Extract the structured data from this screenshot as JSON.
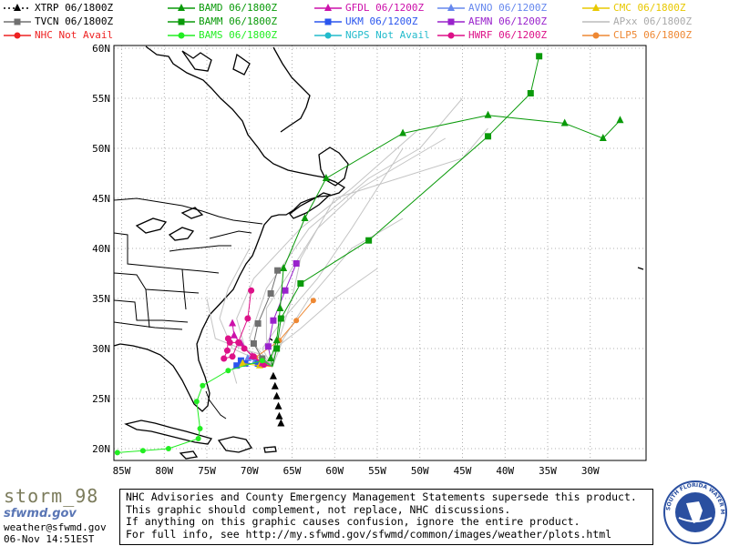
{
  "legend": [
    {
      "id": "xtrp",
      "label": "XTRP  06/1800Z",
      "color": "#000000",
      "marker": "triangle",
      "dashed": true
    },
    {
      "id": "bamd",
      "label": "BAMD 06/1800Z",
      "color": "#0a9a0a",
      "marker": "triangle"
    },
    {
      "id": "gfdl",
      "label": "GFDL  06/1200Z",
      "color": "#cc11aa",
      "marker": "triangle"
    },
    {
      "id": "avno",
      "label": "AVNO 06/1200Z",
      "color": "#6688ee",
      "marker": "triangle"
    },
    {
      "id": "cmc",
      "label": "CMC 06/1800Z",
      "color": "#e8c800",
      "marker": "triangle"
    },
    {
      "id": "tvcn",
      "label": "TVCN  06/1800Z",
      "color": "#707070",
      "marker": "square"
    },
    {
      "id": "bamm",
      "label": "BAMM 06/1800Z",
      "color": "#0a9a0a",
      "marker": "square"
    },
    {
      "id": "ukm",
      "label": "UKM   06/1200Z",
      "color": "#2a55ee",
      "marker": "square"
    },
    {
      "id": "aemn",
      "label": "AEMN 06/1200Z",
      "color": "#9922cc",
      "marker": "square"
    },
    {
      "id": "apxx",
      "label": "APxx 06/1800Z",
      "color": "#bbbbbb",
      "marker": "line"
    },
    {
      "id": "nhc",
      "label": "NHC   Not Avail",
      "color": "#ee2222",
      "marker": "circle"
    },
    {
      "id": "bams",
      "label": "BAMS 06/1800Z",
      "color": "#22ee22",
      "marker": "circle"
    },
    {
      "id": "ngps",
      "label": "NGPS Not Avail",
      "color": "#22bbcc",
      "marker": "circle"
    },
    {
      "id": "hwrf",
      "label": "HWRF 06/1200Z",
      "color": "#dd1188",
      "marker": "circle"
    },
    {
      "id": "clp5",
      "label": "CLP5 06/1800Z",
      "color": "#ee8833",
      "marker": "circle"
    }
  ],
  "axes": {
    "lon_ticks": [
      "85W",
      "80W",
      "75W",
      "70W",
      "65W",
      "60W",
      "55W",
      "50W",
      "45W",
      "40W",
      "35W",
      "30W"
    ],
    "lat_ticks": [
      "60N",
      "55N",
      "50N",
      "45N",
      "40N",
      "35N",
      "30N",
      "25N",
      "20N"
    ]
  },
  "tracks": {
    "xtrp": [
      [
        -67.3,
        28.2
      ],
      [
        -67.2,
        27.2
      ],
      [
        -67.0,
        26.2
      ],
      [
        -66.8,
        25.2
      ],
      [
        -66.6,
        24.2
      ],
      [
        -66.5,
        23.2
      ],
      [
        -66.3,
        22.5
      ]
    ],
    "bamd": [
      [
        -67.3,
        28.2
      ],
      [
        -67.5,
        29.0
      ],
      [
        -66.8,
        30.8
      ],
      [
        -66.4,
        34.0
      ],
      [
        -66.0,
        38.0
      ],
      [
        -63.5,
        43.0
      ],
      [
        -61.0,
        47.0
      ],
      [
        -52.0,
        51.5
      ],
      [
        -42.0,
        53.3
      ],
      [
        -33.0,
        52.5
      ],
      [
        -28.5,
        51.0
      ],
      [
        -26.5,
        52.8
      ]
    ],
    "bamm": [
      [
        -67.3,
        28.2
      ],
      [
        -66.8,
        30.0
      ],
      [
        -66.3,
        33.0
      ],
      [
        -64.0,
        36.5
      ],
      [
        -56.0,
        40.8
      ],
      [
        -42.0,
        51.2
      ],
      [
        -37.0,
        55.5
      ],
      [
        -36.0,
        59.2
      ]
    ],
    "bams": [
      [
        -67.3,
        28.2
      ],
      [
        -68.5,
        28.8
      ],
      [
        -72.5,
        27.8
      ],
      [
        -75.5,
        26.3
      ],
      [
        -76.2,
        24.7
      ],
      [
        -75.8,
        22.0
      ],
      [
        -76.0,
        21.0
      ],
      [
        -79.5,
        20.0
      ],
      [
        -82.5,
        19.8
      ],
      [
        -85.5,
        19.6
      ]
    ],
    "tvcn": [
      [
        -67.3,
        28.2
      ],
      [
        -68.5,
        29.0
      ],
      [
        -69.5,
        30.5
      ],
      [
        -69.0,
        32.5
      ],
      [
        -67.5,
        35.5
      ],
      [
        -66.7,
        37.8
      ]
    ],
    "gfdl": [
      [
        -67.3,
        28.2
      ],
      [
        -68.5,
        28.5
      ],
      [
        -69.7,
        29.2
      ],
      [
        -71.0,
        30.5
      ],
      [
        -71.8,
        31.3
      ],
      [
        -72.0,
        32.5
      ]
    ],
    "hwrf": [
      [
        -67.3,
        28.2
      ],
      [
        -68.3,
        28.4
      ],
      [
        -69.5,
        29.2
      ],
      [
        -70.6,
        30.0
      ],
      [
        -71.3,
        30.6
      ],
      [
        -72.3,
        30.6
      ],
      [
        -72.5,
        31.0
      ],
      [
        -72.6,
        29.8
      ],
      [
        -73.0,
        29.0
      ],
      [
        -72.0,
        29.2
      ],
      [
        -70.2,
        33.0
      ],
      [
        -69.8,
        35.8
      ]
    ],
    "aemn": [
      [
        -67.3,
        28.2
      ],
      [
        -67.8,
        30.2
      ],
      [
        -67.2,
        32.8
      ],
      [
        -65.8,
        35.8
      ],
      [
        -64.5,
        38.5
      ]
    ],
    "ukm": [
      [
        -67.3,
        28.2
      ],
      [
        -69.0,
        28.5
      ],
      [
        -70.5,
        28.5
      ],
      [
        -71.0,
        28.8
      ],
      [
        -71.5,
        28.3
      ]
    ],
    "avno": [
      [
        -67.3,
        28.2
      ],
      [
        -69.3,
        28.8
      ],
      [
        -70.2,
        29.0
      ],
      [
        -70.8,
        28.6
      ]
    ],
    "clp5": [
      [
        -67.3,
        28.2
      ],
      [
        -68.5,
        28.6
      ],
      [
        -69.3,
        29.1
      ],
      [
        -66.5,
        30.8
      ],
      [
        -64.5,
        32.8
      ],
      [
        -62.5,
        34.8
      ]
    ],
    "cmc": [
      [
        -67.3,
        28.2
      ],
      [
        -68.8,
        28.3
      ],
      [
        -70.8,
        28.5
      ]
    ],
    "apxx": [
      [
        [
          -67.3,
          28.2
        ],
        [
          -68.5,
          30
        ],
        [
          -66,
          33
        ],
        [
          -62,
          37
        ],
        [
          -58,
          42
        ],
        [
          -55,
          46
        ],
        [
          -52,
          50
        ]
      ],
      [
        [
          -67.3,
          28.2
        ],
        [
          -70,
          31
        ],
        [
          -68,
          36
        ],
        [
          -63,
          42
        ],
        [
          -56,
          47
        ],
        [
          -50,
          50
        ],
        [
          -45,
          55
        ]
      ],
      [
        [
          -67.3,
          28.2
        ],
        [
          -70.5,
          30
        ],
        [
          -71.5,
          33
        ],
        [
          -69.5,
          37
        ],
        [
          -64,
          42
        ],
        [
          -58,
          46
        ],
        [
          -50,
          52
        ]
      ],
      [
        [
          -67.3,
          28.2
        ],
        [
          -72,
          30
        ],
        [
          -73.5,
          33
        ],
        [
          -72.5,
          36
        ],
        [
          -70,
          40
        ]
      ],
      [
        [
          -67.3,
          28.2
        ],
        [
          -66,
          31
        ],
        [
          -63,
          35
        ],
        [
          -58,
          40
        ],
        [
          -52,
          43
        ]
      ],
      [
        [
          -67.3,
          28.2
        ],
        [
          -69,
          29.5
        ],
        [
          -71,
          30
        ],
        [
          -74,
          31
        ],
        [
          -75,
          35
        ]
      ],
      [
        [
          -67.3,
          28.2
        ],
        [
          -68,
          31
        ],
        [
          -68,
          34
        ],
        [
          -65,
          38
        ],
        [
          -62,
          42
        ],
        [
          -57,
          46
        ],
        [
          -47,
          51
        ]
      ],
      [
        [
          -67.3,
          28.2
        ],
        [
          -67,
          30
        ],
        [
          -64,
          32
        ],
        [
          -60,
          35
        ],
        [
          -55,
          38
        ]
      ],
      [
        [
          -67.3,
          28.2
        ],
        [
          -70,
          29
        ],
        [
          -72,
          28
        ],
        [
          -71.5,
          26.5
        ]
      ],
      [
        [
          -67.3,
          28.2
        ],
        [
          -66.5,
          31
        ],
        [
          -65,
          35
        ],
        [
          -64,
          39
        ],
        [
          -60,
          45
        ],
        [
          -45,
          49
        ],
        [
          -42,
          52
        ]
      ]
    ]
  },
  "storm_name": "storm_98",
  "agency_logo_text": "sfwmd.gov",
  "contact": "weather@sfwmd.gov",
  "timestamp": "06-Nov 14:51EST",
  "disclaimer": [
    "NHC Advisories and County Emergency Management Statements supersede this product.",
    "This graphic should complement, not replace, NHC discussions.",
    "If anything on this graphic causes confusion, ignore the entire product.",
    "For full info, see  http://my.sfwmd.gov/sfwmd/common/images/weather/plots.html"
  ],
  "seal_text": [
    "SOUTH FLORIDA WATER MANAGEMENT DISTRICT"
  ],
  "colors": {
    "grid": "#999999",
    "coast": "#000000",
    "logo_text": "#5a76b5",
    "storm_name": "#7c7c5c",
    "seal_blue": "#2a4fa0"
  }
}
